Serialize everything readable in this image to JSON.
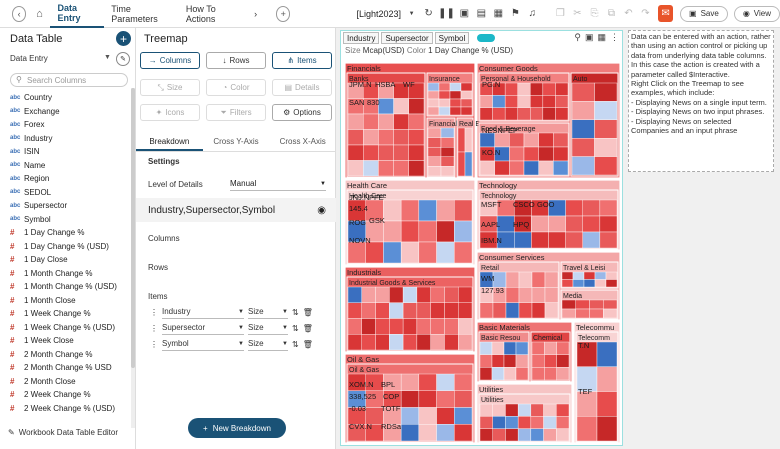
{
  "topbar": {
    "tabs": [
      "Data Entry",
      "Time Parameters",
      "How To Actions"
    ],
    "more": "›",
    "doc_title": "[Light2023]",
    "save_label": "Save",
    "view_label": "View"
  },
  "left": {
    "title": "Data Table",
    "datasource": "Data Entry",
    "search_placeholder": "Search Columns",
    "columns": [
      {
        "type": "abc",
        "name": "Country"
      },
      {
        "type": "abc",
        "name": "Exchange"
      },
      {
        "type": "abc",
        "name": "Forex"
      },
      {
        "type": "abc",
        "name": "Industry"
      },
      {
        "type": "abc",
        "name": "ISIN"
      },
      {
        "type": "abc",
        "name": "Name"
      },
      {
        "type": "abc",
        "name": "Region"
      },
      {
        "type": "abc",
        "name": "SEDOL"
      },
      {
        "type": "abc",
        "name": "Supersector"
      },
      {
        "type": "abc",
        "name": "Symbol"
      },
      {
        "type": "#",
        "name": "1 Day Change %"
      },
      {
        "type": "#",
        "name": "1 Day Change % (USD)"
      },
      {
        "type": "#",
        "name": "1 Day Close"
      },
      {
        "type": "#",
        "name": "1 Month Change %"
      },
      {
        "type": "#",
        "name": "1 Month Change % (USD)"
      },
      {
        "type": "#",
        "name": "1 Month Close"
      },
      {
        "type": "#",
        "name": "1 Week Change %"
      },
      {
        "type": "#",
        "name": "1 Week Change % (USD)"
      },
      {
        "type": "#",
        "name": "1 Week Close"
      },
      {
        "type": "#",
        "name": "2 Month Change %"
      },
      {
        "type": "#",
        "name": "2 Month Change % USD"
      },
      {
        "type": "#",
        "name": "2 Month Close"
      },
      {
        "type": "#",
        "name": "2 Week Change %"
      },
      {
        "type": "#",
        "name": "2 Week Change % (USD)"
      },
      {
        "type": "#",
        "name": "2 Week Close"
      }
    ],
    "editor_label": "Workbook Data Table Editor"
  },
  "mid": {
    "title": "Treemap",
    "columns_btn": "Columns",
    "rows_btn": "Rows",
    "items_btn": "Items",
    "size_btn": "Size",
    "color_btn": "Color",
    "details_btn": "Details",
    "icons_btn": "Icons",
    "filters_btn": "Filters",
    "options_btn": "Options",
    "subtabs": [
      "Breakdown",
      "Cross Y-Axis",
      "Cross X-Axis"
    ],
    "settings_label": "Settings",
    "lod_label": "Level of Details",
    "lod_value": "Manual",
    "hierarchy": "Industry,Supersector,Symbol",
    "columns_label": "Columns",
    "rows_label": "Rows",
    "items_label": "Items",
    "items": [
      {
        "field": "Industry",
        "agg": "Size"
      },
      {
        "field": "Supersector",
        "agg": "Size"
      },
      {
        "field": "Symbol",
        "agg": "Size"
      }
    ],
    "new_breakdown": "New Breakdown"
  },
  "viz": {
    "chips": [
      "Industry",
      "Supersector",
      "Symbol"
    ],
    "size_label": "Size",
    "size_value": "Mcap(USD)",
    "color_label": "Color",
    "color_value": "1 Day Change % (USD)",
    "groups": [
      {
        "name": "Financials",
        "sub": [
          "Banks",
          "Insurance",
          "Financial S",
          "Real E"
        ],
        "symbols": [
          "JPM.N",
          "HSBA",
          "WF",
          "SAN",
          "830"
        ]
      },
      {
        "name": "Consumer Goods",
        "sub": [
          "Personal & Household",
          "Auto",
          "Food & Beverage"
        ],
        "symbols": [
          "PG.N",
          "NESN",
          "PEP",
          "KO.N"
        ]
      },
      {
        "name": "Health Care",
        "sub": [
          "Health Care"
        ],
        "symbols": [
          "JNJ.N",
          "PFE",
          "145.4",
          "ROG",
          "GSK",
          "NOVN"
        ]
      },
      {
        "name": "Technology",
        "sub": [
          "Technology"
        ],
        "symbols": [
          "MSFT",
          "CSCO",
          "GOO",
          "AAPL",
          "HPQ",
          "IBM.N"
        ]
      },
      {
        "name": "Industrials",
        "sub": [
          "Industrial Goods & Services"
        ],
        "symbols": []
      },
      {
        "name": "Consumer Services",
        "sub": [
          "Retail",
          "Travel & Leisi",
          "Media"
        ],
        "symbols": [
          "WM",
          "127.93"
        ]
      },
      {
        "name": "Oil & Gas",
        "sub": [
          "Oil & Gas"
        ],
        "symbols": [
          "XOM.N",
          "BPL",
          "338,525",
          "COP",
          "-0.03",
          "TOTF",
          "CVX.N",
          "RDSa"
        ]
      },
      {
        "name": "Basic Materials",
        "sub": [
          "Basic Resou",
          "Chemical"
        ],
        "symbols": []
      },
      {
        "name": "Telecommu",
        "sub": [
          "Telecomm"
        ],
        "symbols": [
          "T.N",
          "TEF"
        ]
      },
      {
        "name": "Utilities",
        "sub": [
          "Utilities"
        ],
        "symbols": []
      }
    ]
  },
  "note": {
    "lines": [
      "Data can be entered with an action, rather than using an action control or picking up data from underlying data table columns.",
      "In this case the action is created with a parameter called $Interactive.",
      "Right Click on the Treemap to see examples, which include:",
      "- Displaying News on a single input term.",
      "- Displaying News on two input phrases.",
      "- Displaying News on selected Companies and an input phrase"
    ]
  }
}
